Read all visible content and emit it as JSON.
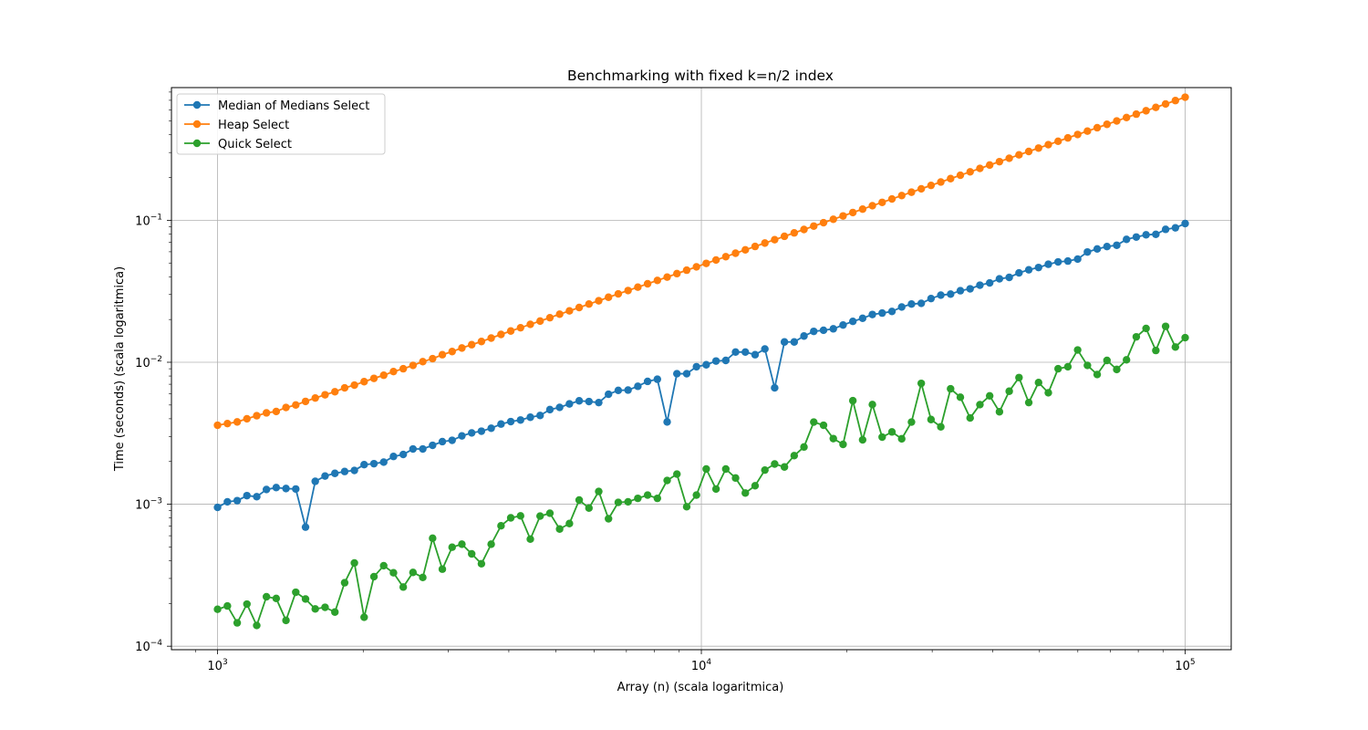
{
  "chart_data": {
    "type": "line",
    "title": "Benchmarking with fixed k=n/2 index",
    "xlabel": "Array (n) (scala logaritmica)",
    "ylabel": "Time (seconds) (scala logaritmica)",
    "xscale": "log",
    "yscale": "log",
    "xlim": [
      803,
      124500
    ],
    "ylim": [
      9.45e-05,
      0.86
    ],
    "grid": true,
    "legend_position": "upper left",
    "x_ticks": [
      {
        "value": 1000,
        "base": "10",
        "exp": "3"
      },
      {
        "value": 10000,
        "base": "10",
        "exp": "4"
      },
      {
        "value": 100000,
        "base": "10",
        "exp": "5"
      }
    ],
    "y_ticks": [
      {
        "value": 0.0001,
        "base": "10",
        "exp": "−4"
      },
      {
        "value": 0.001,
        "base": "10",
        "exp": "−3"
      },
      {
        "value": 0.01,
        "base": "10",
        "exp": "−2"
      },
      {
        "value": 0.1,
        "base": "10",
        "exp": "−1"
      }
    ],
    "x": [
      1000,
      1048,
      1098,
      1150,
      1205,
      1262,
      1322,
      1385,
      1451,
      1520,
      1592,
      1668,
      1748,
      1831,
      1918,
      2009,
      2105,
      2205,
      2310,
      2420,
      2535,
      2656,
      2783,
      2915,
      3054,
      3199,
      3352,
      3511,
      3678,
      3854,
      4037,
      4229,
      4431,
      4642,
      4863,
      5094,
      5337,
      5591,
      5857,
      6136,
      6428,
      6734,
      7055,
      7391,
      7743,
      8111,
      8498,
      8902,
      9326,
      9770,
      10235,
      10723,
      11233,
      11768,
      12328,
      12915,
      13530,
      14175,
      14850,
      15557,
      16298,
      17074,
      17886,
      18738,
      19630,
      20565,
      21544,
      22570,
      23645,
      24771,
      25950,
      27186,
      28480,
      29836,
      31257,
      32745,
      34305,
      35938,
      37649,
      39442,
      41320,
      43288,
      45349,
      47508,
      49770,
      52140,
      54623,
      57224,
      59948,
      62803,
      65793,
      68926,
      72208,
      75646,
      79248,
      83022,
      86975,
      91116,
      95455,
      100000
    ],
    "series": [
      {
        "name": "Median of Medians Select",
        "color": "#1f77b4",
        "values": [
          0.00095,
          0.00104,
          0.00106,
          0.00115,
          0.00113,
          0.00127,
          0.00131,
          0.00129,
          0.00128,
          0.00069,
          0.00145,
          0.00158,
          0.00165,
          0.0017,
          0.00173,
          0.0019,
          0.00193,
          0.00198,
          0.00217,
          0.00224,
          0.00245,
          0.00245,
          0.0026,
          0.00276,
          0.00282,
          0.00303,
          0.00318,
          0.00327,
          0.00343,
          0.00367,
          0.00382,
          0.00392,
          0.0041,
          0.00422,
          0.00464,
          0.00481,
          0.00509,
          0.00535,
          0.00529,
          0.0052,
          0.00595,
          0.00634,
          0.00637,
          0.00677,
          0.00733,
          0.00759,
          0.0038,
          0.0083,
          0.0083,
          0.0093,
          0.0096,
          0.0102,
          0.0103,
          0.0118,
          0.0118,
          0.0113,
          0.0124,
          0.0066,
          0.0139,
          0.0139,
          0.0153,
          0.0165,
          0.0168,
          0.0172,
          0.0183,
          0.0194,
          0.0204,
          0.0217,
          0.0222,
          0.0228,
          0.0245,
          0.0257,
          0.026,
          0.0281,
          0.0297,
          0.0302,
          0.0319,
          0.0329,
          0.0349,
          0.0362,
          0.0387,
          0.0396,
          0.0426,
          0.0448,
          0.0465,
          0.049,
          0.0509,
          0.0516,
          0.0533,
          0.0598,
          0.0628,
          0.0653,
          0.0667,
          0.0734,
          0.0762,
          0.079,
          0.0796,
          0.0863,
          0.0885,
          0.0948
        ]
      },
      {
        "name": "Heap Select",
        "color": "#ff7f0e",
        "values": [
          0.0036,
          0.0037,
          0.0038,
          0.004,
          0.0042,
          0.0044,
          0.0045,
          0.0048,
          0.005,
          0.0053,
          0.0056,
          0.0059,
          0.0062,
          0.0066,
          0.0069,
          0.0073,
          0.0077,
          0.0081,
          0.0086,
          0.009,
          0.0095,
          0.0101,
          0.0106,
          0.0113,
          0.0119,
          0.0126,
          0.0133,
          0.014,
          0.0148,
          0.0157,
          0.0166,
          0.0175,
          0.0185,
          0.0195,
          0.0206,
          0.0218,
          0.023,
          0.0243,
          0.0257,
          0.0271,
          0.0287,
          0.0303,
          0.032,
          0.0338,
          0.0357,
          0.0377,
          0.0398,
          0.0421,
          0.0445,
          0.047,
          0.0497,
          0.0525,
          0.0554,
          0.0586,
          0.0619,
          0.0654,
          0.0691,
          0.073,
          0.0771,
          0.0815,
          0.0861,
          0.091,
          0.0961,
          0.1016,
          0.1073,
          0.1134,
          0.1198,
          0.1266,
          0.1337,
          0.1413,
          0.1493,
          0.1577,
          0.1666,
          0.1761,
          0.186,
          0.1965,
          0.2076,
          0.2194,
          0.2318,
          0.2449,
          0.2588,
          0.2734,
          0.2889,
          0.3052,
          0.3225,
          0.3407,
          0.36,
          0.3804,
          0.4019,
          0.4246,
          0.4486,
          0.474,
          0.5008,
          0.5292,
          0.5591,
          0.5907,
          0.6241,
          0.6594,
          0.6967,
          0.736
        ]
      },
      {
        "name": "Quick Select",
        "color": "#2ca02c",
        "values": [
          0.000182,
          0.000192,
          0.000146,
          0.000198,
          0.00014,
          0.000223,
          0.000217,
          0.000152,
          0.00024,
          0.000215,
          0.000183,
          0.000188,
          0.000174,
          0.00028,
          0.000386,
          0.00016,
          0.000309,
          0.000369,
          0.000329,
          0.000261,
          0.000331,
          0.000305,
          0.000576,
          0.000349,
          0.000498,
          0.000523,
          0.000447,
          0.000381,
          0.000523,
          0.000705,
          0.000802,
          0.000828,
          0.000568,
          0.000825,
          0.000864,
          0.000669,
          0.000731,
          0.00107,
          0.00094,
          0.00123,
          0.00079,
          0.00103,
          0.00104,
          0.0011,
          0.00116,
          0.0011,
          0.00147,
          0.00163,
          0.00096,
          0.00116,
          0.00177,
          0.00128,
          0.00177,
          0.00153,
          0.0012,
          0.00135,
          0.00174,
          0.00192,
          0.00183,
          0.0022,
          0.00253,
          0.00379,
          0.0036,
          0.0029,
          0.00264,
          0.00536,
          0.00284,
          0.00504,
          0.00297,
          0.00323,
          0.00289,
          0.00379,
          0.0071,
          0.00395,
          0.00351,
          0.0065,
          0.00567,
          0.00405,
          0.00503,
          0.0058,
          0.00448,
          0.00625,
          0.0078,
          0.0052,
          0.0072,
          0.0061,
          0.009,
          0.0093,
          0.0122,
          0.0095,
          0.0082,
          0.0103,
          0.0089,
          0.0104,
          0.0151,
          0.0173,
          0.0121,
          0.0179,
          0.0128,
          0.0149
        ]
      }
    ]
  }
}
